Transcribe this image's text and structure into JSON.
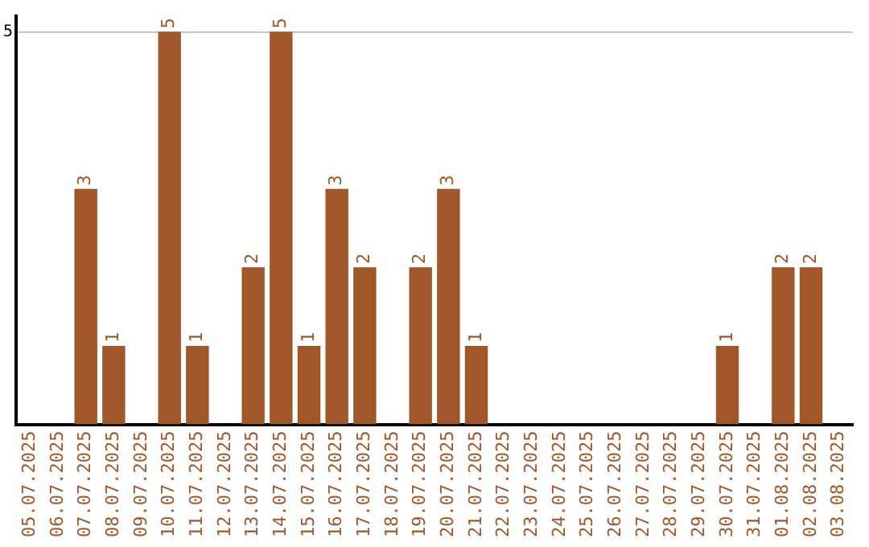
{
  "chart_data": {
    "type": "bar",
    "categories": [
      "05.07.2025",
      "06.07.2025",
      "07.07.2025",
      "08.07.2025",
      "09.07.2025",
      "10.07.2025",
      "11.07.2025",
      "12.07.2025",
      "13.07.2025",
      "14.07.2025",
      "15.07.2025",
      "16.07.2025",
      "17.07.2025",
      "18.07.2025",
      "19.07.2025",
      "20.07.2025",
      "21.07.2025",
      "22.07.2025",
      "23.07.2025",
      "24.07.2025",
      "25.07.2025",
      "26.07.2025",
      "27.07.2025",
      "28.07.2025",
      "29.07.2025",
      "30.07.2025",
      "31.07.2025",
      "01.08.2025",
      "02.08.2025",
      "03.08.2025"
    ],
    "values": [
      0,
      0,
      3,
      1,
      0,
      5,
      1,
      0,
      2,
      5,
      1,
      3,
      2,
      0,
      2,
      3,
      1,
      0,
      0,
      0,
      0,
      0,
      0,
      0,
      0,
      1,
      0,
      2,
      2,
      0
    ],
    "value_labels": [
      null,
      null,
      "3",
      "1",
      null,
      "5",
      "1",
      null,
      "2",
      "5",
      "1",
      "3",
      "2",
      null,
      "2",
      "3",
      "1",
      null,
      null,
      null,
      null,
      null,
      null,
      null,
      null,
      "1",
      null,
      "2",
      "2",
      null
    ],
    "color": "#a0582a",
    "ylim": [
      0,
      5.2
    ],
    "yticks": [
      5
    ],
    "grid": "y",
    "legend": false
  }
}
